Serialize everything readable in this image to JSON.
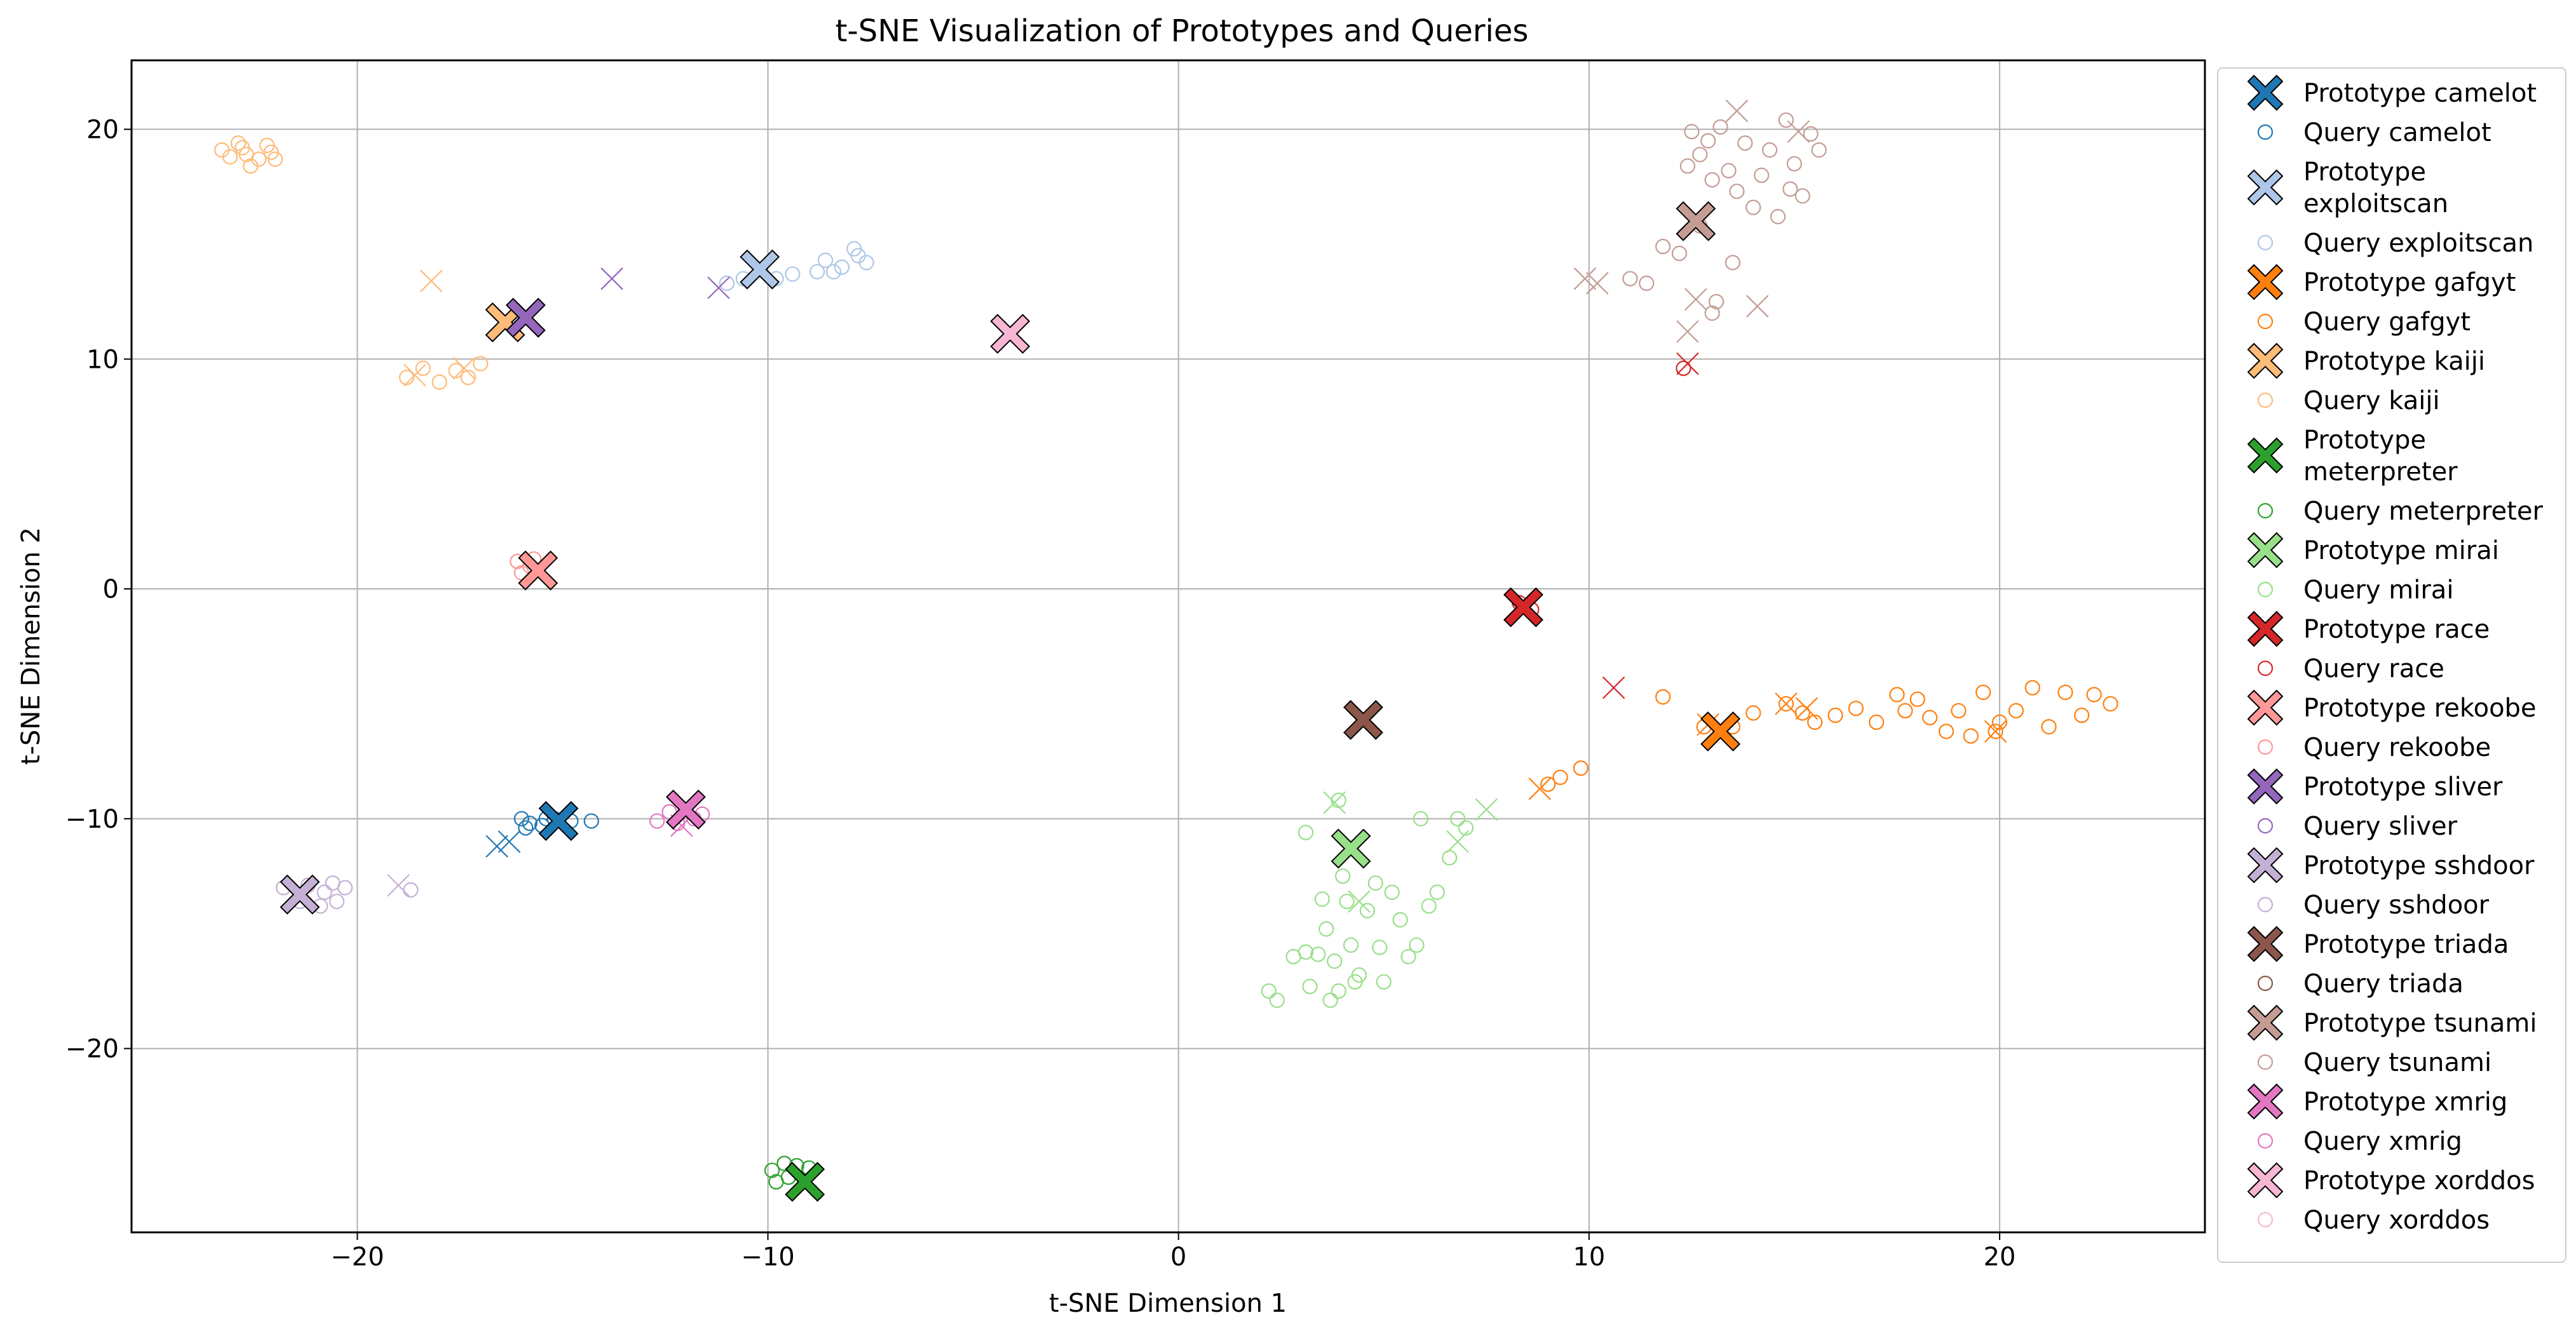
{
  "chart_data": {
    "type": "scatter",
    "title": "t-SNE Visualization of Prototypes and Queries",
    "xlabel": "t-SNE Dimension 1",
    "ylabel": "t-SNE Dimension 2",
    "xlim": [
      -25.5,
      25
    ],
    "ylim": [
      -28,
      23
    ],
    "xticks": [
      -20,
      -10,
      0,
      10,
      20
    ],
    "yticks": [
      -20,
      -10,
      0,
      10,
      20
    ],
    "grid": true,
    "legend_position": "outside-right",
    "series": [
      {
        "name": "camelot",
        "color": "#1f77b4",
        "prototype": [
          -15.1,
          -10.1
        ],
        "queries": [
          [
            -16,
            -10
          ],
          [
            -15.8,
            -10.2
          ],
          [
            -15.5,
            -10.3
          ],
          [
            -15.2,
            -10.0
          ],
          [
            -14.8,
            -10.1
          ],
          [
            -14.3,
            -10.1
          ],
          [
            -15.9,
            -10.4
          ],
          [
            -15.4,
            -10.0
          ]
        ],
        "missed": [
          [
            -16.3,
            -11.0
          ],
          [
            -16.6,
            -11.2
          ]
        ]
      },
      {
        "name": "exploitscan",
        "color": "#aec7e8",
        "prototype": [
          -10.2,
          13.9
        ],
        "queries": [
          [
            -11,
            13.3
          ],
          [
            -10.6,
            13.5
          ],
          [
            -9.8,
            13.5
          ],
          [
            -9.4,
            13.7
          ],
          [
            -8.6,
            14.3
          ],
          [
            -8.2,
            14.0
          ],
          [
            -7.9,
            14.8
          ],
          [
            -7.6,
            14.2
          ],
          [
            -8.4,
            13.8
          ],
          [
            -8.8,
            13.8
          ],
          [
            -7.8,
            14.5
          ]
        ],
        "missed": []
      },
      {
        "name": "gafgyt",
        "color": "#ff7f0e",
        "prototype": [
          13.2,
          -6.2
        ],
        "queries": [
          [
            9.0,
            -8.5
          ],
          [
            9.3,
            -8.2
          ],
          [
            9.8,
            -7.8
          ],
          [
            11.8,
            -4.7
          ],
          [
            12.8,
            -6.0
          ],
          [
            13.5,
            -6.0
          ],
          [
            14.0,
            -5.4
          ],
          [
            14.8,
            -5.0
          ],
          [
            15.2,
            -5.4
          ],
          [
            15.5,
            -5.8
          ],
          [
            16.0,
            -5.5
          ],
          [
            16.5,
            -5.2
          ],
          [
            17.0,
            -5.8
          ],
          [
            17.5,
            -4.6
          ],
          [
            18.0,
            -4.8
          ],
          [
            18.3,
            -5.6
          ],
          [
            18.7,
            -6.2
          ],
          [
            19.0,
            -5.3
          ],
          [
            19.3,
            -6.4
          ],
          [
            19.6,
            -4.5
          ],
          [
            20.0,
            -5.8
          ],
          [
            20.4,
            -5.3
          ],
          [
            20.8,
            -4.3
          ],
          [
            21.2,
            -6.0
          ],
          [
            21.6,
            -4.5
          ],
          [
            22.0,
            -5.5
          ],
          [
            22.3,
            -4.6
          ],
          [
            22.7,
            -5.0
          ],
          [
            17.7,
            -5.3
          ],
          [
            19.9,
            -6.2
          ]
        ],
        "missed": [
          [
            8.8,
            -8.7
          ],
          [
            14.8,
            -5.0
          ],
          [
            15.3,
            -5.2
          ],
          [
            19.9,
            -6.2
          ],
          [
            12.9,
            -5.9
          ]
        ]
      },
      {
        "name": "kaiji",
        "color": "#ffbb78",
        "prototype": [
          -16.4,
          11.6
        ],
        "queries": [
          [
            -23.1,
            18.8
          ],
          [
            -22.8,
            19.2
          ],
          [
            -22.4,
            18.7
          ],
          [
            -22.1,
            19.0
          ],
          [
            -22.6,
            18.4
          ],
          [
            -22.9,
            19.4
          ],
          [
            -22.2,
            19.3
          ],
          [
            -23.3,
            19.1
          ],
          [
            -22.0,
            18.7
          ],
          [
            -22.7,
            18.9
          ],
          [
            -18.4,
            9.6
          ],
          [
            -18.0,
            9.0
          ],
          [
            -17.6,
            9.5
          ],
          [
            -17.3,
            9.2
          ],
          [
            -18.8,
            9.2
          ],
          [
            -17.0,
            9.8
          ]
        ],
        "missed": [
          [
            -18.6,
            9.3
          ],
          [
            -18.2,
            13.4
          ],
          [
            -17.4,
            9.6
          ]
        ]
      },
      {
        "name": "meterpreter",
        "color": "#2ca02c",
        "prototype": [
          -9.1,
          -25.8
        ],
        "queries": [
          [
            -9.9,
            -25.3
          ],
          [
            -9.6,
            -25.0
          ],
          [
            -9.3,
            -25.1
          ],
          [
            -9.0,
            -25.2
          ],
          [
            -9.8,
            -25.8
          ],
          [
            -9.5,
            -25.6
          ]
        ],
        "missed": []
      },
      {
        "name": "mirai",
        "color": "#98df8a",
        "prototype": [
          4.2,
          -11.3
        ],
        "queries": [
          [
            2.2,
            -17.5
          ],
          [
            2.4,
            -17.9
          ],
          [
            2.8,
            -16.0
          ],
          [
            3.1,
            -15.8
          ],
          [
            3.2,
            -17.3
          ],
          [
            3.4,
            -15.9
          ],
          [
            3.5,
            -13.5
          ],
          [
            3.6,
            -14.8
          ],
          [
            3.7,
            -17.9
          ],
          [
            3.8,
            -16.2
          ],
          [
            3.9,
            -17.5
          ],
          [
            4.0,
            -12.5
          ],
          [
            4.1,
            -13.6
          ],
          [
            4.2,
            -15.5
          ],
          [
            4.3,
            -17.1
          ],
          [
            4.4,
            -16.8
          ],
          [
            4.6,
            -14.0
          ],
          [
            4.8,
            -12.8
          ],
          [
            4.9,
            -15.6
          ],
          [
            5.0,
            -17.1
          ],
          [
            5.2,
            -13.2
          ],
          [
            5.4,
            -14.4
          ],
          [
            5.6,
            -16.0
          ],
          [
            5.8,
            -15.5
          ],
          [
            5.9,
            -10.0
          ],
          [
            6.1,
            -13.8
          ],
          [
            6.3,
            -13.2
          ],
          [
            6.6,
            -11.7
          ],
          [
            6.8,
            -10.0
          ],
          [
            7.0,
            -10.4
          ],
          [
            3.9,
            -9.2
          ],
          [
            3.1,
            -10.6
          ]
        ],
        "missed": [
          [
            3.8,
            -9.3
          ],
          [
            4.4,
            -13.6
          ],
          [
            7.5,
            -9.6
          ],
          [
            6.8,
            -11.0
          ]
        ]
      },
      {
        "name": "race",
        "color": "#d62728",
        "prototype": [
          8.4,
          -0.8
        ],
        "queries": [
          [
            8.3,
            -0.6
          ],
          [
            8.6,
            -0.9
          ],
          [
            12.3,
            9.6
          ]
        ],
        "missed": [
          [
            10.6,
            -4.3
          ],
          [
            12.4,
            9.8
          ]
        ]
      },
      {
        "name": "rekoobe",
        "color": "#ff9896",
        "prototype": [
          -15.6,
          0.8
        ],
        "queries": [
          [
            -16.1,
            1.2
          ],
          [
            -15.8,
            1.0
          ],
          [
            -16.0,
            0.7
          ],
          [
            -15.7,
            1.3
          ]
        ],
        "missed": []
      },
      {
        "name": "sliver",
        "color": "#9467bd",
        "prototype": [
          -15.9,
          11.8
        ],
        "queries": [],
        "missed": [
          [
            -13.8,
            13.5
          ],
          [
            -11.2,
            13.1
          ]
        ]
      },
      {
        "name": "sshdoor",
        "color": "#c5b0d5",
        "prototype": [
          -21.4,
          -13.3
        ],
        "queries": [
          [
            -21.8,
            -13.0
          ],
          [
            -21.2,
            -12.9
          ],
          [
            -20.8,
            -13.2
          ],
          [
            -20.5,
            -13.6
          ],
          [
            -20.9,
            -13.8
          ],
          [
            -21.4,
            -13.6
          ],
          [
            -20.3,
            -13.0
          ],
          [
            -18.7,
            -13.1
          ],
          [
            -20.6,
            -12.8
          ]
        ],
        "missed": [
          [
            -19.0,
            -12.9
          ]
        ]
      },
      {
        "name": "triada",
        "color": "#8c564b",
        "prototype": [
          4.5,
          -5.7
        ],
        "queries": [],
        "missed": []
      },
      {
        "name": "tsunami",
        "color": "#c49c94",
        "prototype": [
          12.6,
          16.0
        ],
        "queries": [
          [
            11.8,
            14.9
          ],
          [
            12.2,
            14.6
          ],
          [
            12.4,
            18.4
          ],
          [
            12.5,
            19.9
          ],
          [
            12.7,
            18.9
          ],
          [
            12.9,
            19.5
          ],
          [
            13.0,
            17.8
          ],
          [
            13.2,
            20.1
          ],
          [
            13.4,
            18.2
          ],
          [
            13.6,
            17.3
          ],
          [
            13.8,
            19.4
          ],
          [
            14.0,
            16.6
          ],
          [
            14.2,
            18.0
          ],
          [
            14.4,
            19.1
          ],
          [
            14.6,
            16.2
          ],
          [
            14.8,
            20.4
          ],
          [
            15.0,
            18.5
          ],
          [
            15.2,
            17.1
          ],
          [
            15.4,
            19.8
          ],
          [
            15.6,
            19.1
          ],
          [
            13.1,
            12.5
          ],
          [
            13.0,
            12.0
          ],
          [
            11.0,
            13.5
          ],
          [
            11.4,
            13.3
          ],
          [
            13.5,
            14.2
          ],
          [
            14.9,
            17.4
          ],
          [
            12.7,
            15.8
          ]
        ],
        "missed": [
          [
            9.9,
            13.5
          ],
          [
            10.2,
            13.3
          ],
          [
            13.6,
            20.8
          ],
          [
            15.1,
            19.9
          ],
          [
            12.4,
            11.2
          ],
          [
            12.6,
            12.6
          ],
          [
            14.1,
            12.3
          ]
        ]
      },
      {
        "name": "xmrig",
        "color": "#e377c2",
        "prototype": [
          -12.0,
          -9.6
        ],
        "queries": [
          [
            -12.7,
            -10.1
          ],
          [
            -12.4,
            -9.7
          ],
          [
            -11.8,
            -10.0
          ],
          [
            -11.6,
            -9.8
          ],
          [
            -12.2,
            -10.2
          ]
        ],
        "missed": [
          [
            -12.1,
            -10.3
          ]
        ]
      },
      {
        "name": "xorddos",
        "color": "#f7b6d2",
        "prototype": [
          -4.1,
          11.1
        ],
        "queries": [],
        "missed": []
      }
    ],
    "legend": [
      {
        "kind": "prototype",
        "lines": [
          "Prototype camelot"
        ],
        "series": 0
      },
      {
        "kind": "query",
        "lines": [
          "Query camelot"
        ],
        "series": 0
      },
      {
        "kind": "prototype",
        "lines": [
          "Prototype",
          "exploitscan"
        ],
        "series": 1
      },
      {
        "kind": "query",
        "lines": [
          "Query exploitscan"
        ],
        "series": 1
      },
      {
        "kind": "prototype",
        "lines": [
          "Prototype gafgyt"
        ],
        "series": 2
      },
      {
        "kind": "query",
        "lines": [
          "Query gafgyt"
        ],
        "series": 2
      },
      {
        "kind": "prototype",
        "lines": [
          "Prototype kaiji"
        ],
        "series": 3
      },
      {
        "kind": "query",
        "lines": [
          "Query kaiji"
        ],
        "series": 3
      },
      {
        "kind": "prototype",
        "lines": [
          "Prototype",
          "meterpreter"
        ],
        "series": 4
      },
      {
        "kind": "query",
        "lines": [
          "Query meterpreter"
        ],
        "series": 4
      },
      {
        "kind": "prototype",
        "lines": [
          "Prototype mirai"
        ],
        "series": 5
      },
      {
        "kind": "query",
        "lines": [
          "Query mirai"
        ],
        "series": 5
      },
      {
        "kind": "prototype",
        "lines": [
          "Prototype race"
        ],
        "series": 6
      },
      {
        "kind": "query",
        "lines": [
          "Query race"
        ],
        "series": 6
      },
      {
        "kind": "prototype",
        "lines": [
          "Prototype rekoobe"
        ],
        "series": 7
      },
      {
        "kind": "query",
        "lines": [
          "Query rekoobe"
        ],
        "series": 7
      },
      {
        "kind": "prototype",
        "lines": [
          "Prototype sliver"
        ],
        "series": 8
      },
      {
        "kind": "query",
        "lines": [
          "Query sliver"
        ],
        "series": 8
      },
      {
        "kind": "prototype",
        "lines": [
          "Prototype sshdoor"
        ],
        "series": 9
      },
      {
        "kind": "query",
        "lines": [
          "Query sshdoor"
        ],
        "series": 9
      },
      {
        "kind": "prototype",
        "lines": [
          "Prototype triada"
        ],
        "series": 10
      },
      {
        "kind": "query",
        "lines": [
          "Query triada"
        ],
        "series": 10
      },
      {
        "kind": "prototype",
        "lines": [
          "Prototype tsunami"
        ],
        "series": 11
      },
      {
        "kind": "query",
        "lines": [
          "Query tsunami"
        ],
        "series": 11
      },
      {
        "kind": "prototype",
        "lines": [
          "Prototype xmrig"
        ],
        "series": 12
      },
      {
        "kind": "query",
        "lines": [
          "Query xmrig"
        ],
        "series": 12
      },
      {
        "kind": "prototype",
        "lines": [
          "Prototype xorddos"
        ],
        "series": 13
      },
      {
        "kind": "query",
        "lines": [
          "Query xorddos"
        ],
        "series": 13
      }
    ]
  }
}
